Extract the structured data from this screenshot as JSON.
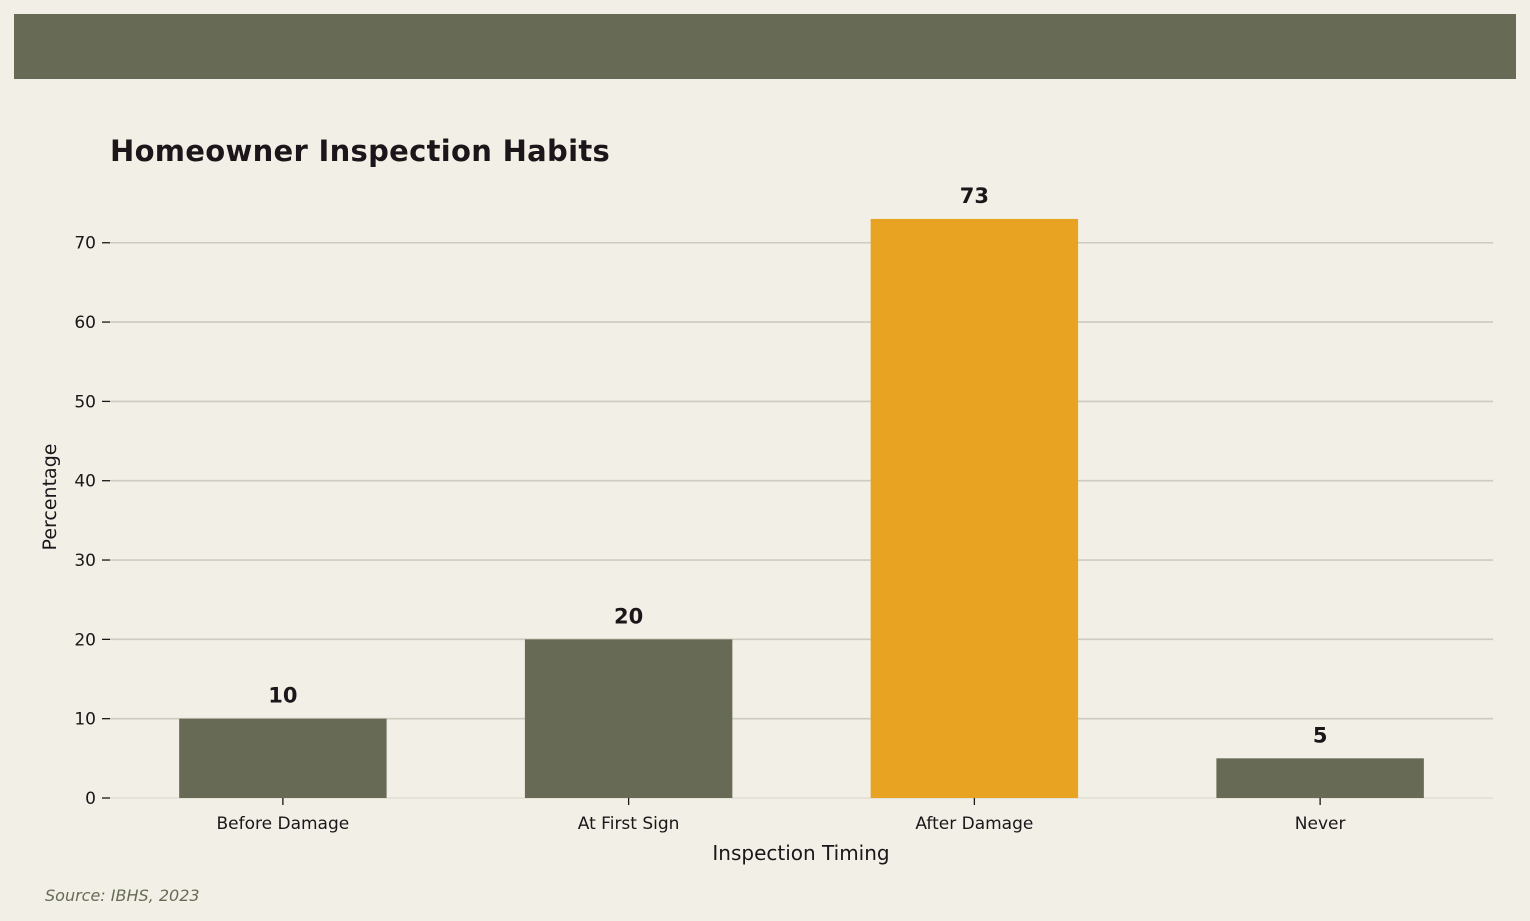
{
  "page": {
    "source": "Source: IBHS, 2023"
  },
  "colors": {
    "background": "#f2efe6",
    "banner": "#676b55",
    "bar_default": "#676b55",
    "bar_highlight": "#e8a323",
    "grid": "#cdcbbf",
    "text": "#1c1519"
  },
  "chart_data": {
    "type": "bar",
    "title": "Homeowner Inspection Habits",
    "xlabel": "Inspection Timing",
    "ylabel": "Percentage",
    "categories": [
      "Before Damage",
      "At First Sign",
      "After Damage",
      "Never"
    ],
    "values": [
      10,
      20,
      73,
      5
    ],
    "highlight_category": "After Damage",
    "ylim": [
      0,
      76.65
    ],
    "yticks": [
      0,
      10,
      20,
      30,
      40,
      50,
      60,
      70
    ],
    "grid": "horizontal",
    "data_labels": true
  }
}
